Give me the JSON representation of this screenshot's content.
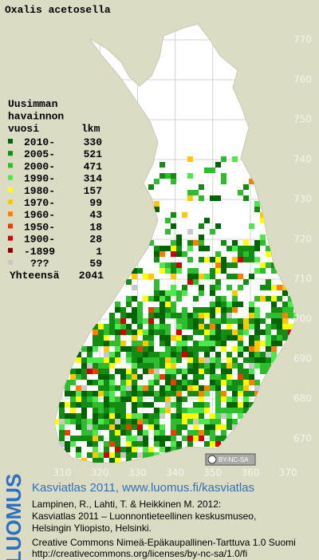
{
  "title": "Oxalis acetosella",
  "legend": {
    "heading": [
      "Uusimman",
      "havainnon",
      "vuosi"
    ],
    "count_heading": "lkm",
    "rows": [
      {
        "label": "2010-",
        "count": 330,
        "color": "#006400"
      },
      {
        "label": "2005-",
        "count": 521,
        "color": "#128c12"
      },
      {
        "label": "2000-",
        "count": 471,
        "color": "#2ebd2e"
      },
      {
        "label": "1990-",
        "count": 314,
        "color": "#4ee84e"
      },
      {
        "label": "1980-",
        "count": 157,
        "color": "#ffff00"
      },
      {
        "label": "1970-",
        "count": 99,
        "color": "#ffc800"
      },
      {
        "label": "1960-",
        "count": 43,
        "color": "#ff8000"
      },
      {
        "label": "1950-",
        "count": 18,
        "color": "#e84000"
      },
      {
        "label": "1900-",
        "count": 28,
        "color": "#d00000"
      },
      {
        "label": "-1899",
        "count": 1,
        "color": "#800000"
      },
      {
        "label": "???",
        "count": 59,
        "color": "#c8c8c8"
      }
    ],
    "total_label": "Yhteensä",
    "total": 2041
  },
  "map": {
    "xticks": [
      310,
      320,
      330,
      340,
      350,
      360,
      370
    ],
    "yticks": [
      670,
      680,
      690,
      700,
      710,
      720,
      730,
      740,
      750,
      760,
      770
    ]
  },
  "badge": "BY-NC-SA",
  "footer": {
    "logo": "LUOMUS",
    "heading": "Kasviatlas 2011, www.luomus.fi/kasviatlas",
    "citation": [
      "Lampinen, R., Lahti, T. & Heikkinen M. 2012:",
      "Kasviatlas 2011 – Luonnontieteellinen keskusmuseo,",
      "Helsingin Yliopisto, Helsinki."
    ],
    "license": [
      "Creative Commons Nimeä-Epäkaupallinen-Tarttuva 1.0 Suomi",
      "http://creativecommons.org/licenses/by-nc-sa/1.0/fi"
    ]
  }
}
